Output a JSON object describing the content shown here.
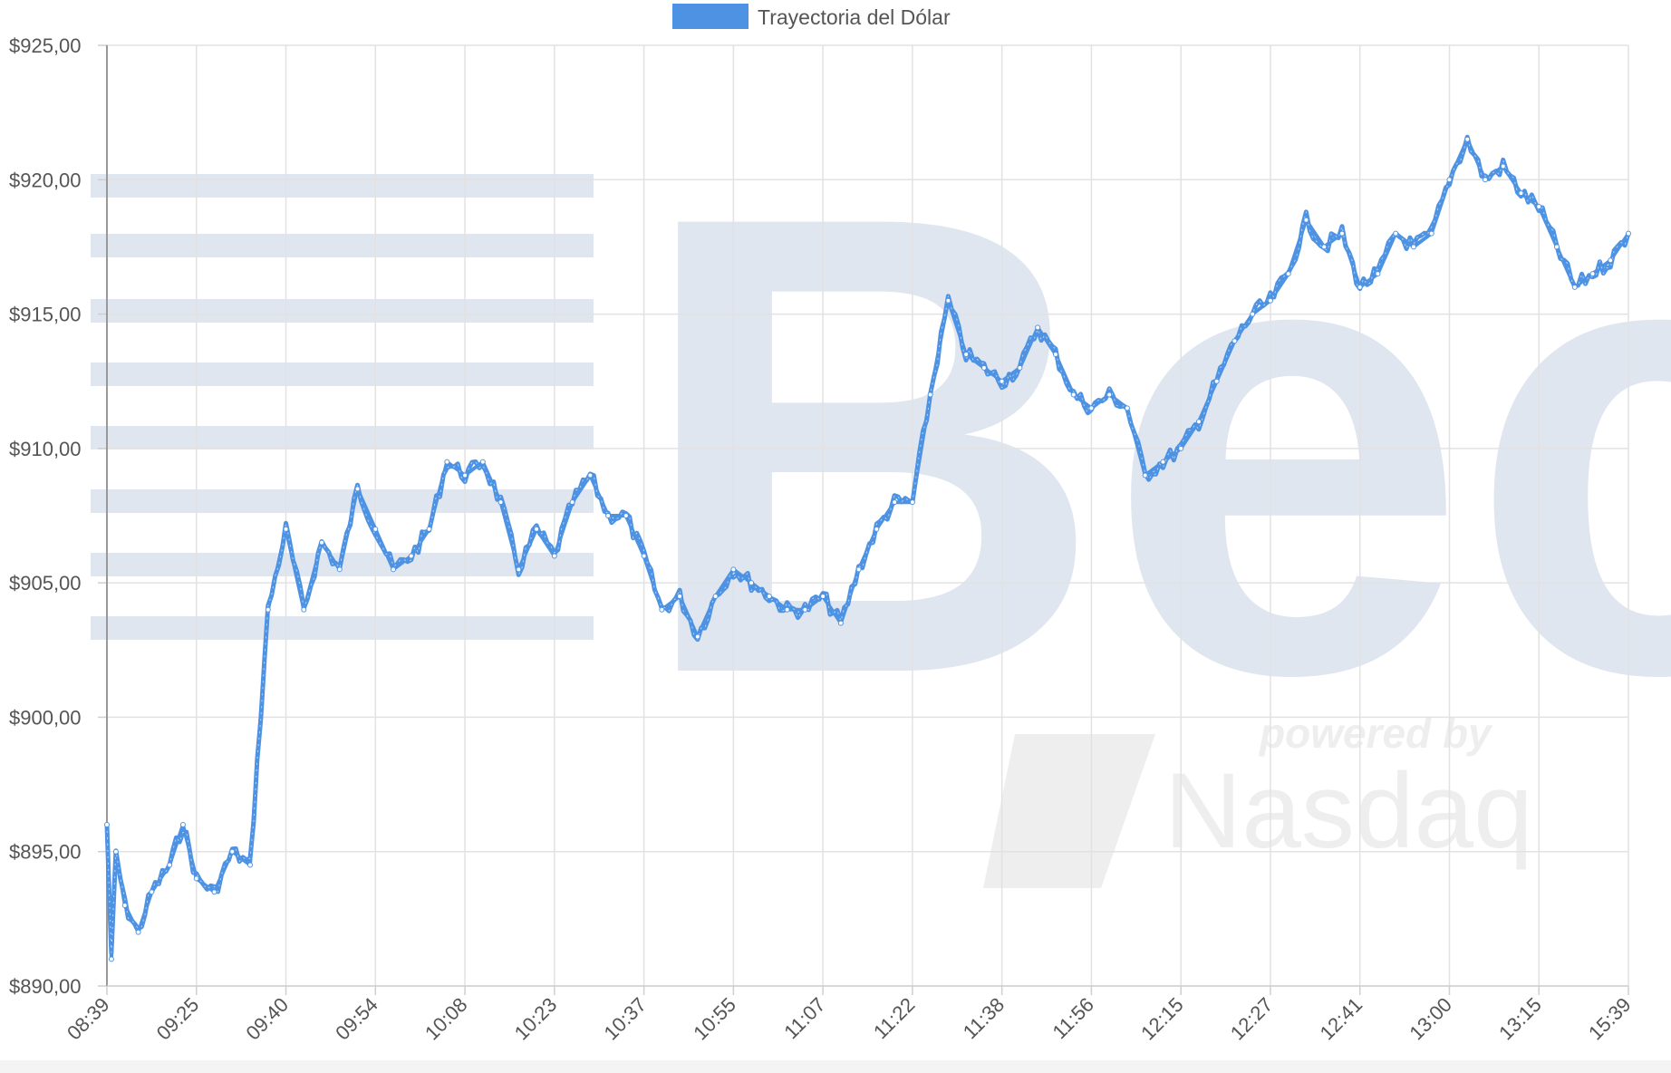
{
  "chart_data": {
    "type": "line",
    "legend": "Trayectoria del Dólar",
    "legend_position": "top",
    "series_color": "#4e93e3",
    "grid": true,
    "ylim": [
      890,
      925
    ],
    "y_ticks": [
      "$890,00",
      "$895,00",
      "$900,00",
      "$905,00",
      "$910,00",
      "$915,00",
      "$920,00",
      "$925,00"
    ],
    "x_ticks": [
      "08:39",
      "09:25",
      "09:40",
      "09:54",
      "10:08",
      "10:23",
      "10:37",
      "10:55",
      "11:07",
      "11:22",
      "11:38",
      "11:56",
      "12:15",
      "12:27",
      "12:41",
      "13:00",
      "13:15",
      "15:39"
    ],
    "series": [
      {
        "name": "Trayectoria del Dólar",
        "x_index": [
          0,
          0.05,
          0.1,
          0.2,
          0.35,
          0.5,
          0.7,
          0.85,
          1.0,
          1.2,
          1.4,
          1.6,
          1.8,
          2.0,
          2.2,
          2.4,
          2.6,
          2.8,
          3.0,
          3.2,
          3.4,
          3.6,
          3.8,
          4.0,
          4.2,
          4.4,
          4.6,
          4.8,
          5.0,
          5.2,
          5.4,
          5.6,
          5.8,
          6.0,
          6.2,
          6.4,
          6.6,
          6.8,
          7.0,
          7.2,
          7.4,
          7.6,
          7.8,
          8.0,
          8.2,
          8.4,
          8.6,
          8.8,
          9.0,
          9.2,
          9.4,
          9.6,
          9.8,
          10.0,
          10.2,
          10.4,
          10.6,
          10.8,
          11.0,
          11.2,
          11.4,
          11.6,
          11.8,
          12.0,
          12.2,
          12.4,
          12.6,
          12.8,
          13.0,
          13.2,
          13.4,
          13.6,
          13.8,
          14.0,
          14.2,
          14.4,
          14.6,
          14.8,
          15.0,
          15.2,
          15.4,
          15.6,
          15.8,
          16.0,
          16.2,
          16.4,
          16.6,
          16.8,
          17.0
        ],
        "values": [
          896.0,
          891.0,
          895.0,
          893.0,
          892.0,
          893.5,
          894.5,
          896.0,
          894.0,
          893.5,
          895.0,
          894.5,
          904.0,
          907.0,
          904.0,
          906.5,
          905.5,
          908.5,
          907.0,
          905.5,
          906.0,
          907.0,
          909.5,
          909.0,
          909.5,
          908.0,
          905.5,
          907.0,
          906.0,
          908.0,
          909.0,
          907.5,
          907.5,
          906.0,
          904.0,
          904.5,
          903.0,
          904.5,
          905.5,
          905.0,
          904.5,
          904.0,
          904.0,
          904.5,
          903.5,
          905.5,
          907.0,
          908.0,
          908.0,
          912.0,
          915.5,
          913.5,
          913.0,
          912.5,
          913.0,
          914.5,
          913.5,
          912.0,
          911.5,
          912.0,
          911.5,
          909.0,
          909.5,
          910.0,
          911.0,
          912.5,
          914.0,
          915.0,
          915.5,
          916.5,
          918.5,
          917.5,
          918.0,
          916.0,
          916.5,
          918.0,
          917.5,
          918.0,
          920.0,
          921.5,
          920.0,
          920.5,
          919.5,
          919.0,
          917.5,
          916.0,
          916.5,
          917.0,
          918.0
        ]
      }
    ]
  },
  "watermark": {
    "logo_text": "Bec",
    "powered_text": "powered by",
    "nasdaq_text": "Nasdaq"
  }
}
